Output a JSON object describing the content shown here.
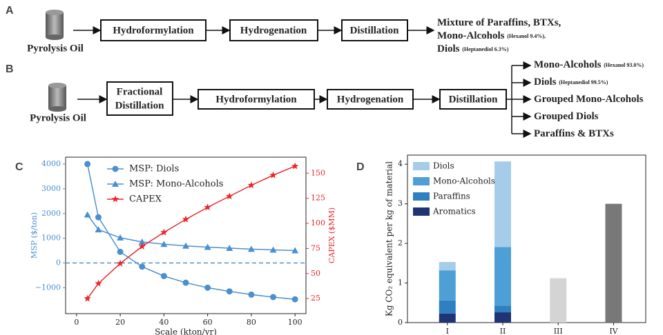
{
  "panel_a": {
    "label": "A",
    "source": "Pyrolysis Oil",
    "steps": [
      "Hydroformylation",
      "Hydrogenation",
      "Distillation"
    ],
    "outputs": [
      {
        "name": "Mixture of Paraffins, BTXs,"
      },
      {
        "name": "Mono-Alcohols",
        "note": "(Hexanol 9.4%),"
      },
      {
        "name": "Diols",
        "note": "(Heptanediol 6.3%)"
      }
    ]
  },
  "panel_b": {
    "label": "B",
    "source": "Pyrolysis Oil",
    "steps": [
      [
        "Fractional",
        "Distillation"
      ],
      "Hydroformylation",
      "Hydrogenation",
      "Distillation"
    ],
    "outputs": [
      {
        "name": "Mono-Alcohols",
        "note": "(Hexanol 93.0%)"
      },
      {
        "name": "Diols",
        "note": "(Heptanediol 99.5%)"
      },
      {
        "name": "Grouped Mono-Alcohols"
      },
      {
        "name": "Grouped Diols"
      },
      {
        "name": "Paraffins & BTXs"
      }
    ]
  },
  "chart_data": [
    {
      "type": "line",
      "label": "C",
      "xlabel": "Scale (kton/yr)",
      "ylabel": "MSP ($/ton)",
      "y2label": "CAPEX ($MM)",
      "x": [
        5,
        10,
        20,
        30,
        40,
        50,
        60,
        70,
        80,
        90,
        100
      ],
      "series": [
        {
          "name": "MSP: Diols",
          "color": "#4a90d0",
          "marker": "circle",
          "values": [
            4000,
            1850,
            450,
            -150,
            -530,
            -800,
            -1000,
            -1150,
            -1280,
            -1380,
            -1470
          ]
        },
        {
          "name": "MSP: Mono-Alcohols",
          "color": "#4a90d0",
          "marker": "triangle",
          "values": [
            1950,
            1350,
            1020,
            850,
            760,
            690,
            640,
            600,
            560,
            530,
            500
          ]
        },
        {
          "name": "CAPEX",
          "color": "#e8262a",
          "marker": "star",
          "axis": "y2",
          "values": [
            25,
            40,
            60,
            77,
            91,
            104,
            116,
            127,
            138,
            148,
            157
          ]
        }
      ],
      "xlim": [
        -5,
        105
      ],
      "xticks": [
        0,
        20,
        40,
        60,
        80,
        100
      ],
      "ylim": [
        -2050,
        4280
      ],
      "yticks": [
        {
          "value": -1000,
          "label": "−1000"
        },
        0,
        1000,
        2000,
        3000,
        4000
      ],
      "y2lim": [
        10,
        166
      ],
      "y2ticks": [
        25,
        50,
        75,
        100,
        125,
        150
      ],
      "y_color": "#4a90d0",
      "y2_color": "#e8262a",
      "hline": 0,
      "legend": "upper center"
    },
    {
      "type": "bar",
      "label": "D",
      "ylabel": "Kg CO₂ equivalent per kg of material",
      "categories": [
        "I",
        "II",
        "III",
        "IV"
      ],
      "series": [
        {
          "name": "Aromatics",
          "color": "#1f3473",
          "values": [
            0.23,
            0.26,
            null,
            null
          ]
        },
        {
          "name": "Paraffins",
          "color": "#2f7fc1",
          "values": [
            0.33,
            0.17,
            null,
            null
          ]
        },
        {
          "name": "Mono-Alcohols",
          "color": "#4e9fd5",
          "values": [
            0.76,
            1.48,
            null,
            null
          ]
        },
        {
          "name": "Diols",
          "color": "#a5cce8",
          "values": [
            0.21,
            2.16,
            null,
            null
          ]
        },
        {
          "color": "#d4d4d4",
          "values": [
            null,
            null,
            1.12,
            null
          ]
        },
        {
          "color": "#787878",
          "values": [
            null,
            null,
            null,
            3.0
          ]
        }
      ],
      "ylim": [
        0,
        4.23
      ],
      "yticks": [
        0,
        1,
        2,
        3,
        4
      ],
      "stacked": true,
      "legend": "upper left"
    }
  ]
}
